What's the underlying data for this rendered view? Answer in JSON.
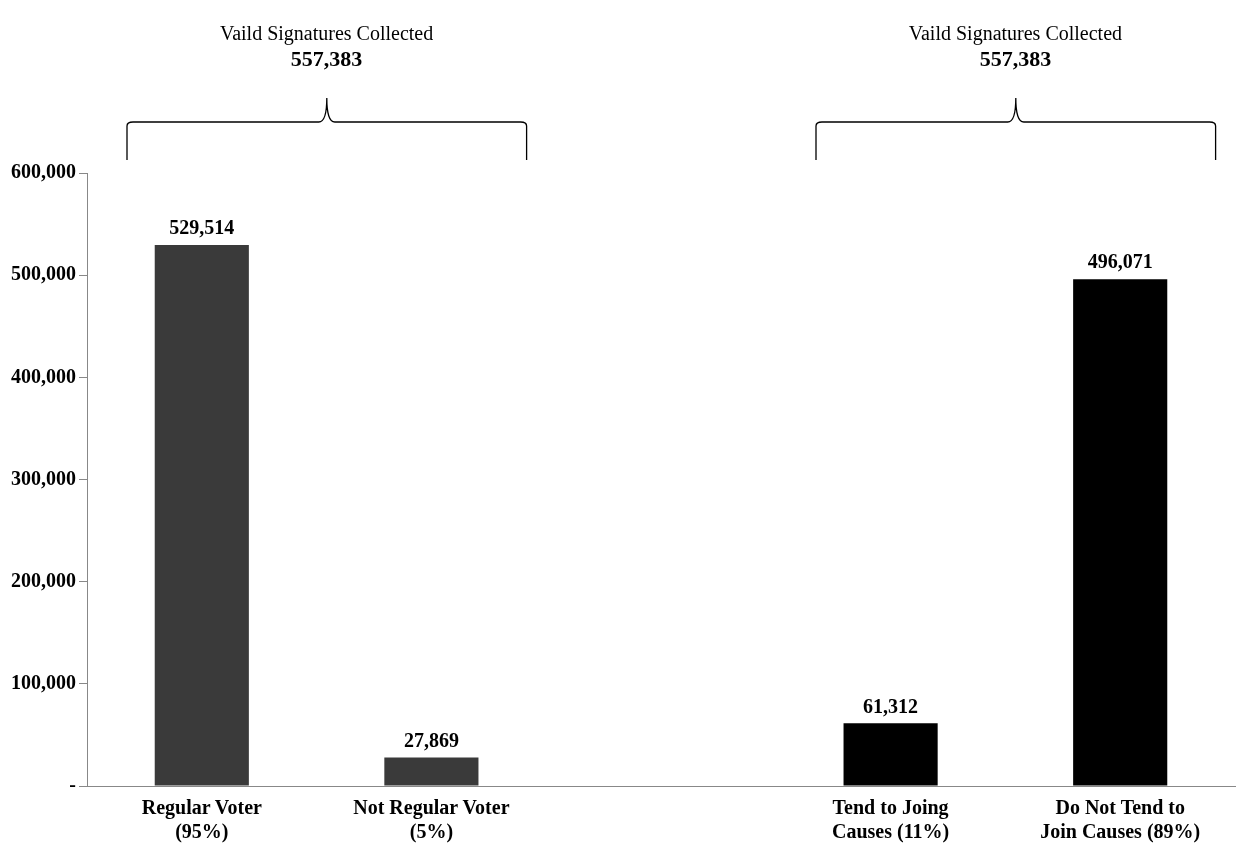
{
  "chart_data": {
    "type": "bar",
    "categories": [
      "Regular Voter (95%)",
      "Not Regular Voter (5%)",
      null,
      "Tend to Joing Causes (11%)",
      "Do Not Tend to Join Causes (89%)"
    ],
    "values": [
      529514,
      27869,
      null,
      61312,
      496071
    ],
    "colors": [
      "#3a3a3a",
      "#3a3a3a",
      "#000000",
      "#000000",
      "#000000"
    ],
    "ylim": [
      0,
      600000
    ],
    "yticks": [
      {
        "value": 0,
        "label": "-"
      },
      {
        "value": 100000,
        "label": "100,000"
      },
      {
        "value": 200000,
        "label": "200,000"
      },
      {
        "value": 300000,
        "label": "300,000"
      },
      {
        "value": 400000,
        "label": "400,000"
      },
      {
        "value": 500000,
        "label": "500,000"
      },
      {
        "value": 600000,
        "label": "600,000"
      }
    ],
    "grid": false,
    "legend": false,
    "value_labels": [
      "529,514",
      "27,869",
      null,
      "61,312",
      "496,071"
    ],
    "annotations": [
      "Vaild Signatures Collected",
      "557,383",
      "Vaild Signatures Collected",
      "557,383"
    ]
  }
}
